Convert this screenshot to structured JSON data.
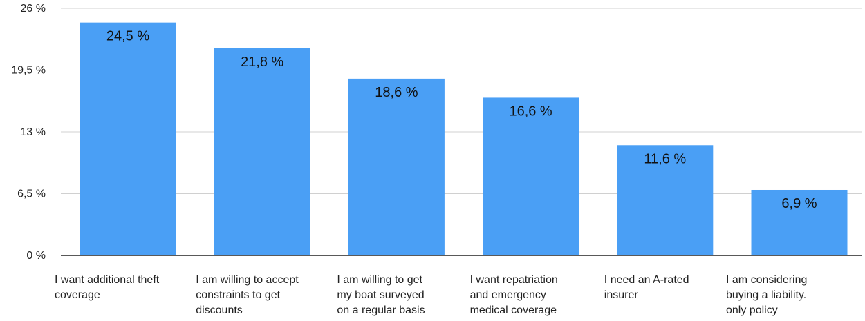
{
  "chart_data": {
    "type": "bar",
    "categories": [
      [
        "I want additional theft",
        "coverage"
      ],
      [
        "I am willing to accept",
        "constraints to get",
        "discounts"
      ],
      [
        "I am willing to get",
        "my boat surveyed",
        "on a regular basis"
      ],
      [
        "I want repatriation",
        "and emergency",
        "medical coverage"
      ],
      [
        "I need an A-rated",
        "insurer"
      ],
      [
        "I am considering",
        "buying a liability.",
        "only policy"
      ]
    ],
    "values": [
      24.5,
      21.8,
      18.6,
      16.6,
      11.6,
      6.9
    ],
    "value_labels": [
      "24,5 %",
      "21,8 %",
      "18,6 %",
      "16,6 %",
      "11,6 %",
      "6,9 %"
    ],
    "y_ticks": [
      0,
      6.5,
      13,
      19.5,
      26
    ],
    "y_tick_labels": [
      "0 %",
      "6,5 %",
      "13 %",
      "19,5 %",
      "26 %"
    ],
    "ylim": [
      0,
      26
    ],
    "grid": true,
    "bar_color": "#4a9ff5",
    "grid_color": "#d0d0d0",
    "title": "",
    "xlabel": "",
    "ylabel": ""
  }
}
